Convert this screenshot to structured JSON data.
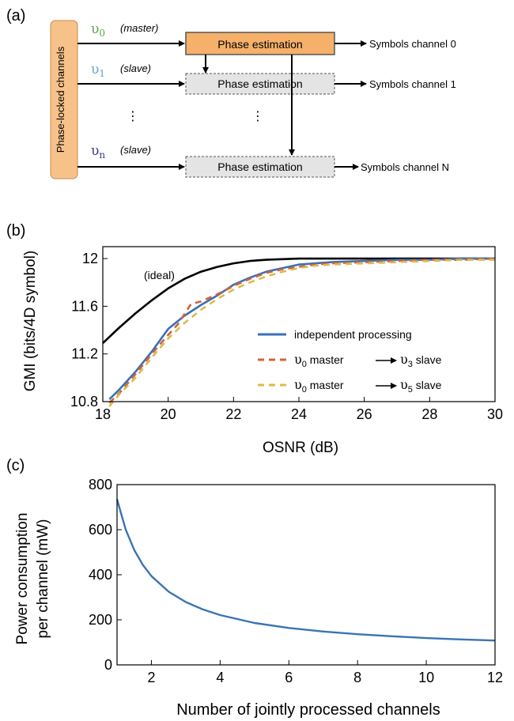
{
  "colors": {
    "sidebox_fill": "#f7c28a",
    "sidebox_stroke": "#c8884a",
    "master_fill": "#f5b06a",
    "master_stroke": "#555555",
    "slave_fill": "#e4e4e4",
    "slave_stroke": "#555555",
    "nu0": "#5ea44a",
    "nu1": "#6aa6c4",
    "nun": "#3d3d8c",
    "ideal": "#000000",
    "independent": "#3a6fb6",
    "nu3": "#d0633c",
    "nu5": "#dbbb4c",
    "power": "#3a74b4"
  },
  "panel_a": {
    "label": "(a)",
    "side_label": "Phase-locked channels",
    "master_box": "Phase estimation",
    "slave_box": "Phase estimation",
    "rows": [
      {
        "nu": "υ",
        "sub": "0",
        "role": "(master)",
        "output": "Symbols channel 0"
      },
      {
        "nu": "υ",
        "sub": "1",
        "role": "(slave)",
        "output": "Symbols channel 1"
      },
      {
        "nu": "υ",
        "sub": "n",
        "role": "(slave)",
        "output": "Symbols channel N"
      }
    ],
    "dots": "⋮"
  },
  "panel_b": {
    "label": "(b)"
  },
  "panel_c": {
    "label": "(c)"
  },
  "chart_data": [
    {
      "type": "line",
      "xlabel": "OSNR (dB)",
      "ylabel": "GMI (bits/4D symbol)",
      "xlim": [
        18,
        30
      ],
      "ylim": [
        10.8,
        12.1
      ],
      "xticks": [
        18,
        20,
        22,
        24,
        26,
        28,
        30
      ],
      "yticks": [
        10.8,
        11.2,
        11.6,
        12
      ],
      "ytick_labels": [
        "10.8",
        "11.2",
        "11.6",
        "12"
      ],
      "annotation": "(ideal)",
      "legend_position": "bottom-right",
      "series": [
        {
          "key": "ideal",
          "x": [
            18,
            18.5,
            19,
            19.5,
            20,
            20.5,
            21,
            21.5,
            22,
            22.5,
            23,
            24,
            25,
            26,
            27,
            28,
            30
          ],
          "y": [
            11.29,
            11.42,
            11.54,
            11.65,
            11.75,
            11.83,
            11.89,
            11.93,
            11.96,
            11.98,
            11.99,
            12.0,
            12.0,
            12.0,
            12.0,
            12.0,
            12.0
          ]
        },
        {
          "key": "independent",
          "name": "independent processing",
          "x": [
            18.2,
            18.5,
            19,
            19.5,
            20,
            20.5,
            21,
            21.5,
            22,
            22.5,
            23,
            23.5,
            24,
            24.5,
            25,
            26,
            27,
            28,
            29,
            30
          ],
          "y": [
            10.82,
            10.9,
            11.05,
            11.22,
            11.41,
            11.52,
            11.61,
            11.69,
            11.78,
            11.84,
            11.89,
            11.92,
            11.95,
            11.96,
            11.97,
            11.98,
            11.99,
            11.99,
            12.0,
            12.0
          ]
        },
        {
          "key": "nu3",
          "name_parts": {
            "a": "υ",
            "a_sub": "0",
            "b": " master ",
            "c": "υ",
            "c_sub": "3",
            "d": " slave"
          },
          "x": [
            18.2,
            18.5,
            19,
            19.5,
            20,
            20.3,
            20.7,
            21,
            21.5,
            22,
            22.5,
            23,
            23.5,
            24,
            24.5,
            25,
            26,
            27,
            28,
            29,
            30
          ],
          "y": [
            10.79,
            10.87,
            11.03,
            11.2,
            11.36,
            11.45,
            11.62,
            11.64,
            11.7,
            11.77,
            11.83,
            11.88,
            11.91,
            11.93,
            11.95,
            11.96,
            11.97,
            11.98,
            11.99,
            11.99,
            12.0
          ]
        },
        {
          "key": "nu5",
          "name_parts": {
            "a": "υ",
            "a_sub": "0",
            "b": " master ",
            "c": "υ",
            "c_sub": "5",
            "d": " slave"
          },
          "x": [
            18.2,
            18.5,
            19,
            19.5,
            20,
            20.5,
            21,
            21.5,
            22,
            22.5,
            23,
            23.5,
            24,
            24.5,
            25,
            26,
            27,
            28,
            29,
            30
          ],
          "y": [
            10.76,
            10.86,
            11.0,
            11.17,
            11.33,
            11.46,
            11.57,
            11.66,
            11.74,
            11.8,
            11.85,
            11.89,
            11.92,
            11.94,
            11.95,
            11.96,
            11.97,
            11.98,
            11.99,
            11.99
          ]
        }
      ]
    },
    {
      "type": "line",
      "xlabel": "Number of jointly processed channels",
      "ylabel_line1": "Power consumption",
      "ylabel_line2": "per channel (mW)",
      "xlim": [
        1,
        12
      ],
      "ylim": [
        0,
        800
      ],
      "xticks": [
        2,
        4,
        6,
        8,
        10,
        12
      ],
      "yticks": [
        0,
        200,
        400,
        600,
        800
      ],
      "series": [
        {
          "key": "power",
          "x": [
            1,
            1.25,
            1.5,
            1.75,
            2,
            2.5,
            3,
            3.5,
            4,
            5,
            6,
            7,
            8,
            9,
            10,
            11,
            12
          ],
          "y": [
            735,
            601,
            510,
            444,
            394,
            325,
            279,
            246,
            221,
            186,
            164,
            148,
            136,
            127,
            119,
            113,
            108
          ]
        }
      ]
    }
  ]
}
